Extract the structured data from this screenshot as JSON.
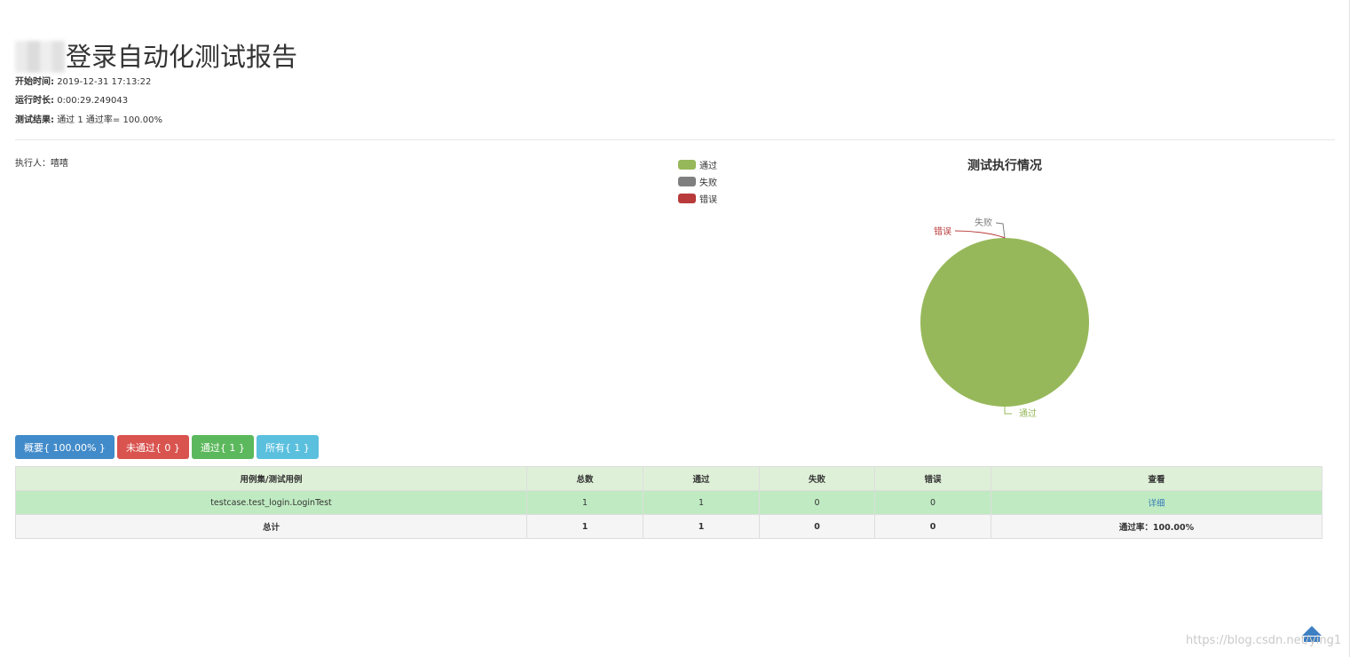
{
  "header": {
    "title": "登录自动化测试报告",
    "start_label": "开始时间:",
    "start_value": "2019-12-31 17:13:22",
    "duration_label": "运行时长:",
    "duration_value": "0:00:29.249043",
    "result_label": "测试结果:",
    "result_value": "通过 1 通过率= 100.00%"
  },
  "executor": "执行人：嘻嘻",
  "chart_data": {
    "type": "pie",
    "title": "测试执行情况",
    "categories": [
      "通过",
      "失败",
      "错误"
    ],
    "values": [
      1,
      0,
      0
    ],
    "colors": [
      "#97b85a",
      "#7f7f7f",
      "#b93a3a"
    ],
    "legend_position": "top-left"
  },
  "filters": {
    "summary": "概要{ 100.00% }",
    "failed": "未通过{ 0 }",
    "passed": "通过{ 1 }",
    "all": "所有{ 1 }"
  },
  "table": {
    "headers": [
      "用例集/测试用例",
      "总数",
      "通过",
      "失败",
      "错误",
      "查看"
    ],
    "row": {
      "name": "testcase.test_login.LoginTest",
      "total": "1",
      "pass": "1",
      "fail": "0",
      "error": "0",
      "view": "详细"
    },
    "total_row": {
      "label": "总计",
      "total": "1",
      "pass": "1",
      "fail": "0",
      "error": "0",
      "rate": "通过率：100.00%"
    }
  },
  "colors": {
    "btn_summary": "#428bca",
    "btn_failed": "#d9534f",
    "btn_passed": "#5cb85c",
    "btn_all": "#5bc0de"
  },
  "watermark": "https://blog.csdn.net/ying1"
}
